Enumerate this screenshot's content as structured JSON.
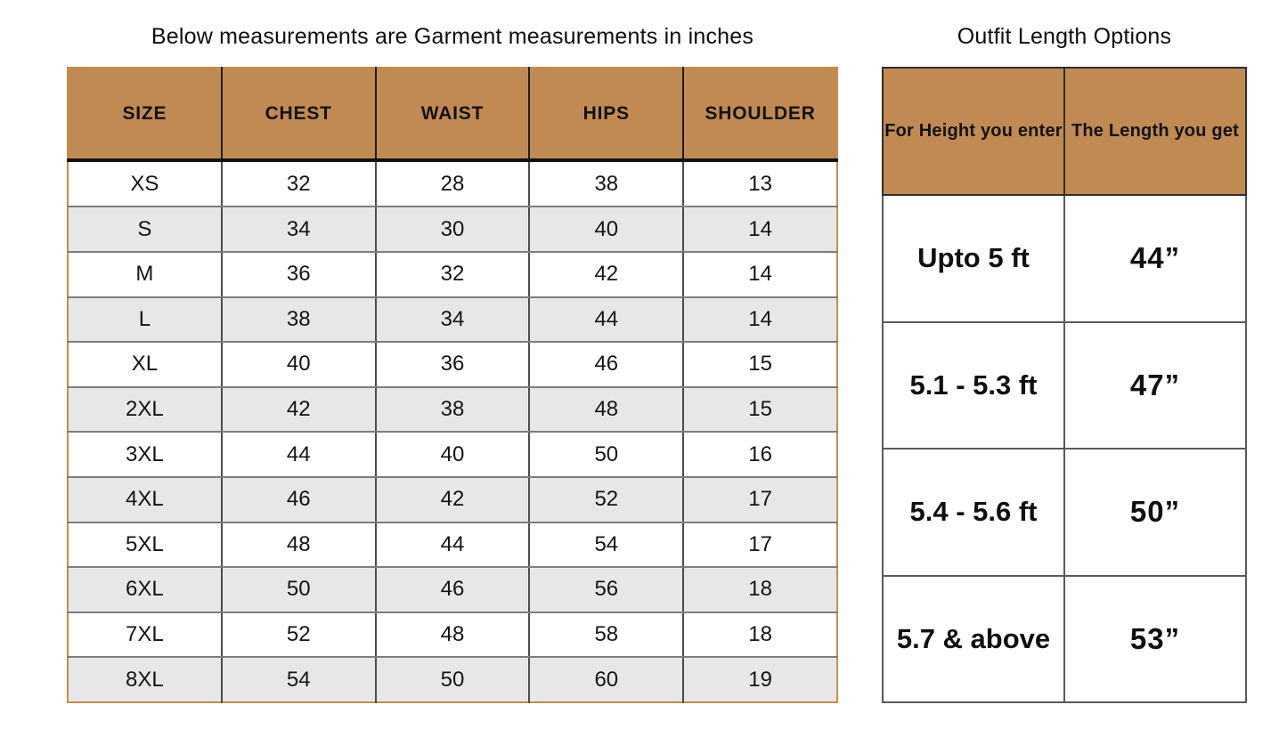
{
  "left_table": {
    "title": "Below measurements are Garment measurements in inches",
    "headers": [
      "SIZE",
      "CHEST",
      "WAIST",
      "HIPS",
      "SHOULDER"
    ],
    "rows": [
      [
        "XS",
        "32",
        "28",
        "38",
        "13"
      ],
      [
        "S",
        "34",
        "30",
        "40",
        "14"
      ],
      [
        "M",
        "36",
        "32",
        "42",
        "14"
      ],
      [
        "L",
        "38",
        "34",
        "44",
        "14"
      ],
      [
        "XL",
        "40",
        "36",
        "46",
        "15"
      ],
      [
        "2XL",
        "42",
        "38",
        "48",
        "15"
      ],
      [
        "3XL",
        "44",
        "40",
        "50",
        "16"
      ],
      [
        "4XL",
        "46",
        "42",
        "52",
        "17"
      ],
      [
        "5XL",
        "48",
        "44",
        "54",
        "17"
      ],
      [
        "6XL",
        "50",
        "46",
        "56",
        "18"
      ],
      [
        "7XL",
        "52",
        "48",
        "58",
        "18"
      ],
      [
        "8XL",
        "54",
        "50",
        "60",
        "19"
      ]
    ]
  },
  "right_table": {
    "title": "Outfit Length Options",
    "headers": [
      "For Height you enter",
      "The Length you get"
    ],
    "rows": [
      [
        "Upto 5 ft",
        "44”"
      ],
      [
        "5.1 - 5.3 ft",
        "47”"
      ],
      [
        "5.4 - 5.6 ft",
        "50”"
      ],
      [
        "5.7 & above",
        "53”"
      ]
    ]
  },
  "colors": {
    "header_fill": "#c08a52",
    "stripe_fill": "#e7e7e9",
    "left_table_outer_border": "#c48f44",
    "row_divider": "#7d7d7d",
    "column_divider": "#4b4b4b",
    "header_divider": "#111111",
    "right_table_border": "#5a5a5a",
    "text": "#111111",
    "background": "#ffffff"
  }
}
